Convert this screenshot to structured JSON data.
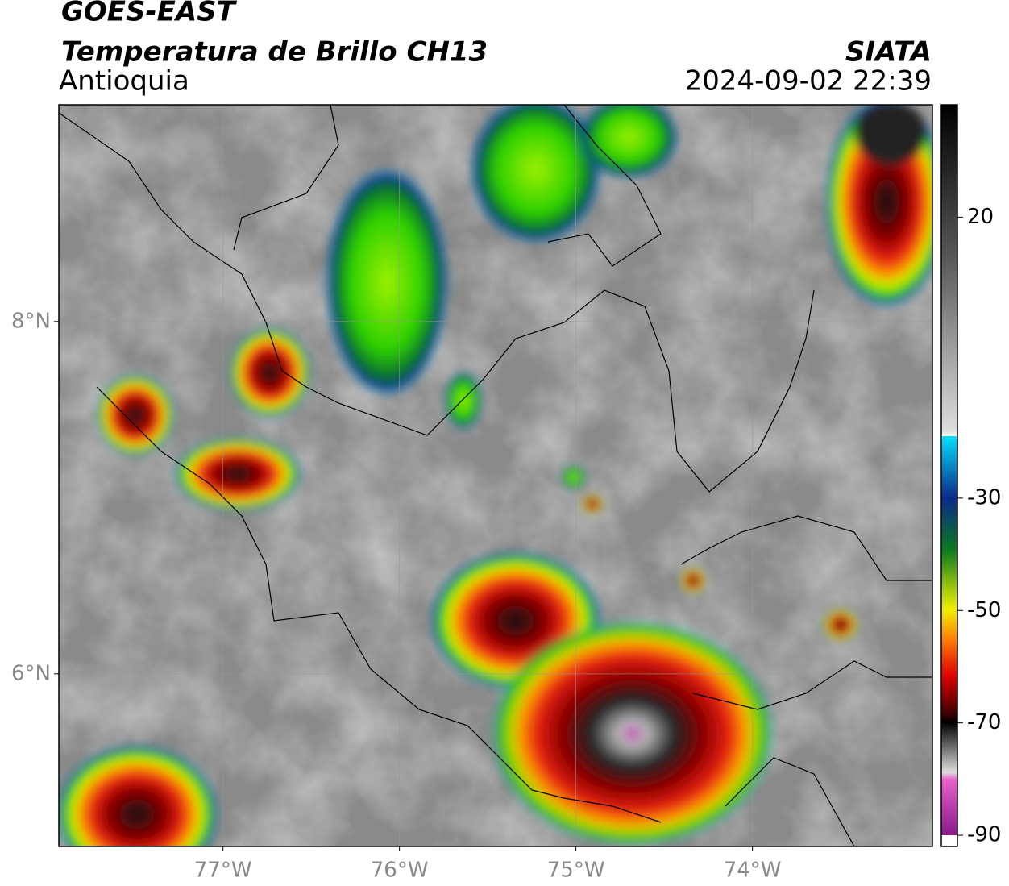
{
  "header": {
    "title": "GOES-EAST",
    "subtitle": "Temperatura de Brillo CH13",
    "region": "Antioquia",
    "source": "SIATA",
    "datetime": "2024-09-02 22:39"
  },
  "map": {
    "xlim": [
      -77.93,
      -72.98
    ],
    "ylim": [
      5.02,
      9.23
    ],
    "xticks": [
      {
        "value": -77,
        "label": "77°W"
      },
      {
        "value": -76,
        "label": "76°W"
      },
      {
        "value": -75,
        "label": "75°W"
      },
      {
        "value": -74,
        "label": "74°W"
      }
    ],
    "yticks": [
      {
        "value": 6,
        "label": "6°N"
      },
      {
        "value": 8,
        "label": "8°N"
      }
    ],
    "grid": true
  },
  "colorbar": {
    "lim": [
      -92,
      40
    ],
    "ticks": [
      -90,
      -70,
      -50,
      -30,
      20
    ]
  }
}
